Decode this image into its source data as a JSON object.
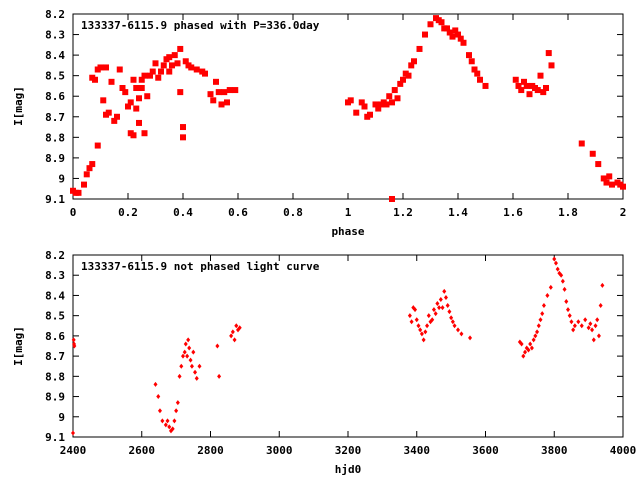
{
  "chart_data": [
    {
      "type": "scatter",
      "title": "133337-6115.9 phased with P=336.0day",
      "xlabel": "phase",
      "ylabel": "I[mag]",
      "xlim": [
        0,
        2
      ],
      "ylim": [
        9.1,
        8.2
      ],
      "y_inverted": true,
      "x_ticks": [
        "0",
        "0.2",
        "0.4",
        "0.6",
        "0.8",
        "1",
        "1.2",
        "1.4",
        "1.6",
        "1.8",
        "2"
      ],
      "y_ticks": [
        "8.2",
        "8.3",
        "8.4",
        "8.5",
        "8.6",
        "8.7",
        "8.8",
        "8.9",
        "9",
        "9.1"
      ],
      "grid": false,
      "marker_color": "#ff0000",
      "series": [
        {
          "x": [
            0.0,
            0.01,
            0.02,
            0.04,
            0.05,
            0.06,
            0.07,
            0.07,
            0.08,
            0.09,
            0.09,
            0.1,
            0.11,
            0.12,
            0.12,
            0.13,
            0.14,
            0.15,
            0.16,
            0.17,
            0.18,
            0.19,
            0.2,
            0.21,
            0.21,
            0.22,
            0.22,
            0.23,
            0.23,
            0.24,
            0.24,
            0.25,
            0.25,
            0.26,
            0.26,
            0.27,
            0.28,
            0.29,
            0.3,
            0.31,
            0.32,
            0.33,
            0.34,
            0.35,
            0.35,
            0.36,
            0.37,
            0.38,
            0.39,
            0.39,
            0.4,
            0.4,
            0.41,
            0.42,
            0.43,
            0.45,
            0.47,
            0.48,
            0.5,
            0.51,
            0.52,
            0.53,
            0.54,
            0.55,
            0.56,
            0.57,
            0.59,
            1.0,
            1.01,
            1.03,
            1.05,
            1.06,
            1.07,
            1.08,
            1.1,
            1.11,
            1.12,
            1.13,
            1.14,
            1.15,
            1.16,
            1.17,
            1.18,
            1.19,
            1.2,
            1.21,
            1.22,
            1.23,
            1.24,
            1.26,
            1.28,
            1.3,
            1.32,
            1.33,
            1.34,
            1.35,
            1.36,
            1.37,
            1.38,
            1.39,
            1.4,
            1.41,
            1.42,
            1.44,
            1.45,
            1.46,
            1.47,
            1.48,
            1.5,
            1.61,
            1.62,
            1.63,
            1.64,
            1.65,
            1.66,
            1.67,
            1.68,
            1.69,
            1.7,
            1.71,
            1.72,
            1.73,
            1.74,
            1.85,
            1.89,
            1.91,
            1.93,
            1.94,
            1.95,
            1.96,
            1.98,
            1.99,
            2.0,
            1.16
          ],
          "y": [
            9.06,
            9.07,
            9.07,
            9.03,
            8.98,
            8.95,
            8.93,
            8.51,
            8.52,
            8.84,
            8.47,
            8.46,
            8.62,
            8.69,
            8.46,
            8.68,
            8.53,
            8.72,
            8.7,
            8.47,
            8.56,
            8.58,
            8.65,
            8.63,
            8.78,
            8.52,
            8.79,
            8.66,
            8.56,
            8.61,
            8.73,
            8.52,
            8.56,
            8.78,
            8.5,
            8.6,
            8.5,
            8.48,
            8.44,
            8.51,
            8.48,
            8.45,
            8.42,
            8.41,
            8.48,
            8.45,
            8.4,
            8.44,
            8.37,
            8.58,
            8.75,
            8.8,
            8.43,
            8.45,
            8.46,
            8.47,
            8.48,
            8.49,
            8.59,
            8.62,
            8.53,
            8.58,
            8.64,
            8.58,
            8.63,
            8.57,
            8.57,
            8.63,
            8.62,
            8.68,
            8.63,
            8.65,
            8.7,
            8.69,
            8.64,
            8.66,
            8.64,
            8.63,
            8.64,
            8.6,
            8.63,
            8.57,
            8.61,
            8.54,
            8.52,
            8.49,
            8.5,
            8.45,
            8.43,
            8.37,
            8.3,
            8.25,
            8.22,
            8.23,
            8.24,
            8.27,
            8.27,
            8.29,
            8.31,
            8.28,
            8.3,
            8.32,
            8.34,
            8.4,
            8.43,
            8.47,
            8.49,
            8.52,
            8.55,
            8.52,
            8.55,
            8.57,
            8.53,
            8.55,
            8.59,
            8.55,
            8.56,
            8.57,
            8.5,
            8.58,
            8.56,
            8.39,
            8.45,
            8.83,
            8.88,
            8.93,
            9.0,
            9.02,
            8.99,
            9.03,
            9.02,
            9.03,
            9.04,
            9.1
          ]
        }
      ]
    },
    {
      "type": "scatter",
      "title": "133337-6115.9 not phased light curve",
      "xlabel": "hjd0",
      "ylabel": "I[mag]",
      "xlim": [
        2400,
        4000
      ],
      "ylim": [
        9.1,
        8.2
      ],
      "y_inverted": true,
      "x_ticks": [
        "2400",
        "2600",
        "2800",
        "3000",
        "3200",
        "3400",
        "3600",
        "3800",
        "4000"
      ],
      "y_ticks": [
        "8.2",
        "8.3",
        "8.4",
        "8.5",
        "8.6",
        "8.7",
        "8.8",
        "8.9",
        "9",
        "9.1"
      ],
      "grid": false,
      "marker_color": "#ff0000",
      "series": [
        {
          "x": [
            2400,
            2402,
            2403,
            2404,
            2640,
            2648,
            2653,
            2660,
            2670,
            2675,
            2680,
            2685,
            2690,
            2695,
            2700,
            2705,
            2710,
            2715,
            2720,
            2725,
            2728,
            2732,
            2735,
            2738,
            2742,
            2746,
            2750,
            2755,
            2760,
            2768,
            2820,
            2825,
            2860,
            2865,
            2870,
            2875,
            2880,
            2885,
            3380,
            3385,
            3390,
            3395,
            3400,
            3405,
            3410,
            3415,
            3420,
            3425,
            3430,
            3435,
            3440,
            3445,
            3450,
            3455,
            3460,
            3465,
            3470,
            3475,
            3480,
            3485,
            3490,
            3495,
            3500,
            3505,
            3510,
            3520,
            3530,
            3555,
            3700,
            3705,
            3710,
            3715,
            3720,
            3725,
            3730,
            3735,
            3740,
            3745,
            3750,
            3755,
            3760,
            3765,
            3770,
            3780,
            3790,
            3800,
            3805,
            3810,
            3815,
            3820,
            3825,
            3830,
            3835,
            3840,
            3845,
            3850,
            3855,
            3860,
            3870,
            3880,
            3890,
            3900,
            3905,
            3910,
            3915,
            3920,
            3925,
            3930,
            3935,
            3940
          ],
          "y": [
            9.08,
            8.62,
            8.64,
            8.65,
            8.84,
            8.9,
            8.97,
            9.02,
            9.04,
            9.02,
            9.05,
            9.07,
            9.06,
            9.02,
            8.97,
            8.93,
            8.8,
            8.75,
            8.7,
            8.68,
            8.64,
            8.7,
            8.62,
            8.66,
            8.72,
            8.75,
            8.68,
            8.78,
            8.81,
            8.75,
            8.65,
            8.8,
            8.6,
            8.58,
            8.62,
            8.55,
            8.57,
            8.56,
            8.5,
            8.53,
            8.46,
            8.47,
            8.52,
            8.55,
            8.57,
            8.59,
            8.62,
            8.58,
            8.55,
            8.5,
            8.53,
            8.52,
            8.47,
            8.49,
            8.44,
            8.46,
            8.42,
            8.46,
            8.38,
            8.41,
            8.45,
            8.48,
            8.51,
            8.53,
            8.55,
            8.57,
            8.59,
            8.61,
            8.63,
            8.64,
            8.7,
            8.68,
            8.66,
            8.67,
            8.64,
            8.66,
            8.62,
            8.6,
            8.58,
            8.55,
            8.52,
            8.49,
            8.45,
            8.4,
            8.36,
            8.22,
            8.24,
            8.27,
            8.29,
            8.3,
            8.33,
            8.37,
            8.43,
            8.47,
            8.5,
            8.53,
            8.57,
            8.55,
            8.53,
            8.55,
            8.52,
            8.56,
            8.54,
            8.57,
            8.62,
            8.55,
            8.52,
            8.6,
            8.45,
            8.35
          ]
        }
      ]
    }
  ]
}
